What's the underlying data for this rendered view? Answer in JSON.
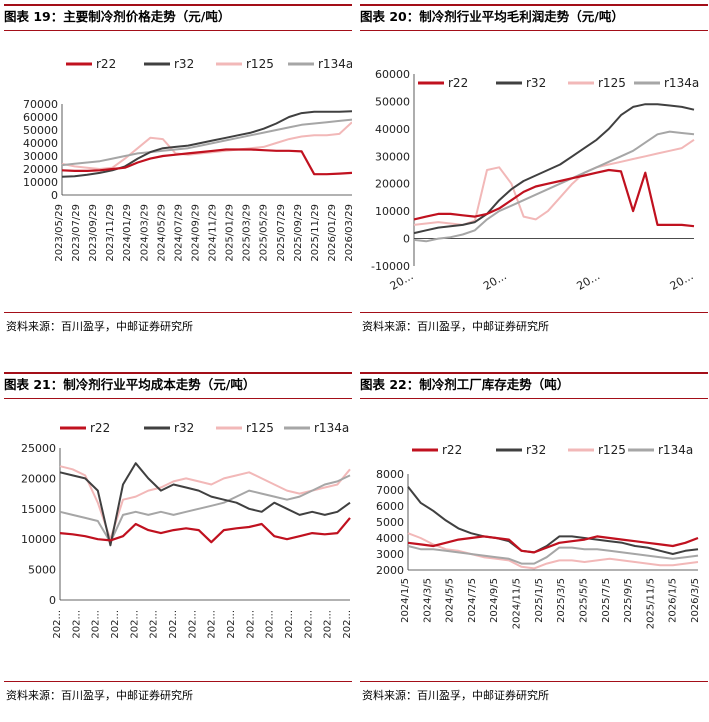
{
  "source_label": "资料来源：百川盈孚，中邮证券研究所",
  "colors": {
    "r22": "#c0111f",
    "r32": "#404040",
    "r125": "#f2b8b8",
    "r134a": "#a6a6a6"
  },
  "chart_data": [
    {
      "id": "chart19",
      "type": "line",
      "title": "图表 19：主要制冷剂价格走势（元/吨）",
      "ylim": [
        0,
        70000
      ],
      "yticks": [
        0,
        10000,
        20000,
        30000,
        40000,
        50000,
        60000,
        70000
      ],
      "ytick_labels": [
        "0",
        "10000",
        "20000",
        "30000",
        "40000",
        "50000",
        "60000",
        "70000"
      ],
      "xtick_labels": [
        "2023/05/29",
        "2023/07/29",
        "2023/09/29",
        "2023/11/29",
        "2024/01/29",
        "2024/03/29",
        "2024/05/29",
        "2024/07/29",
        "2024/09/29",
        "2024/11/29",
        "2025/01/29",
        "2025/03/29",
        "2025/05/29",
        "2025/07/29",
        "2025/09/29",
        "2025/11/29",
        "2026/01/29",
        "2026/03/29"
      ],
      "legend": [
        "r22",
        "r32",
        "r125",
        "r134a"
      ],
      "legend_position": "top",
      "series": [
        {
          "name": "r22",
          "values": [
            19000,
            18500,
            18500,
            19000,
            20000,
            21000,
            25000,
            28000,
            30000,
            31000,
            32000,
            33000,
            34000,
            35000,
            35000,
            35000,
            34500,
            34000,
            34000,
            33500,
            16000,
            16000,
            16500,
            17000
          ]
        },
        {
          "name": "r32",
          "values": [
            14000,
            14500,
            15500,
            17000,
            19000,
            22000,
            28000,
            33000,
            36000,
            37000,
            38000,
            40000,
            42000,
            44000,
            46000,
            48000,
            51000,
            55000,
            60000,
            63000,
            64000,
            64000,
            64000,
            64500
          ]
        },
        {
          "name": "r125",
          "values": [
            24000,
            22000,
            21000,
            20000,
            21000,
            28000,
            36000,
            44000,
            43000,
            32000,
            31000,
            32000,
            33000,
            34000,
            35000,
            36000,
            37000,
            40000,
            43000,
            45000,
            46000,
            46000,
            47000,
            56000
          ]
        },
        {
          "name": "r134a",
          "values": [
            23000,
            24000,
            25000,
            26000,
            28000,
            30000,
            32000,
            33000,
            34000,
            35000,
            36000,
            38000,
            40000,
            42000,
            44000,
            46000,
            48000,
            50000,
            52000,
            54000,
            55000,
            56000,
            57000,
            58000
          ]
        }
      ]
    },
    {
      "id": "chart20",
      "type": "line",
      "title": "图表 20：制冷剂行业平均毛利润走势（元/吨）",
      "ylim": [
        -10000,
        60000
      ],
      "yticks": [
        -10000,
        0,
        10000,
        20000,
        30000,
        40000,
        50000,
        60000
      ],
      "ytick_labels": [
        "-10000",
        "0",
        "10000",
        "20000",
        "30000",
        "40000",
        "50000",
        "60000"
      ],
      "xtick_labels": [
        "20...",
        "20...",
        "20...",
        "20..."
      ],
      "legend": [
        "r22",
        "r32",
        "r125",
        "r134a"
      ],
      "legend_position": "top",
      "series": [
        {
          "name": "r22",
          "values": [
            7000,
            8000,
            9000,
            9000,
            8500,
            8000,
            9000,
            11000,
            14000,
            17000,
            19000,
            20000,
            21000,
            22000,
            23000,
            24000,
            25000,
            24500,
            10000,
            24000,
            5000,
            5000,
            5000,
            4500
          ]
        },
        {
          "name": "r32",
          "values": [
            2000,
            3000,
            4000,
            4500,
            5000,
            6000,
            9000,
            14000,
            18000,
            21000,
            23000,
            25000,
            27000,
            30000,
            33000,
            36000,
            40000,
            45000,
            48000,
            49000,
            49000,
            48500,
            48000,
            47000
          ]
        },
        {
          "name": "r125",
          "values": [
            5000,
            5500,
            6000,
            5500,
            5000,
            6500,
            25000,
            26000,
            20000,
            8000,
            7000,
            10000,
            15000,
            20000,
            24000,
            26000,
            27000,
            28000,
            29000,
            30000,
            31000,
            32000,
            33000,
            36000
          ]
        },
        {
          "name": "r134a",
          "values": [
            -500,
            -1000,
            0,
            500,
            1500,
            3000,
            7000,
            10000,
            12000,
            14000,
            16000,
            18000,
            20000,
            22000,
            24000,
            26000,
            28000,
            30000,
            32000,
            35000,
            38000,
            39000,
            38500,
            38000
          ]
        }
      ]
    },
    {
      "id": "chart21",
      "type": "line",
      "title": "图表 21：制冷剂行业平均成本走势（元/吨）",
      "ylim": [
        0,
        25000
      ],
      "yticks": [
        0,
        5000,
        10000,
        15000,
        20000,
        25000
      ],
      "ytick_labels": [
        "0",
        "5000",
        "10000",
        "15000",
        "20000",
        "25000"
      ],
      "xtick_labels": [
        "202...",
        "202...",
        "202...",
        "202...",
        "202...",
        "202...",
        "202...",
        "202...",
        "202...",
        "202...",
        "202...",
        "202...",
        "202...",
        "202...",
        "202...",
        "202..."
      ],
      "legend": [
        "r22",
        "r32",
        "r125",
        "r134a"
      ],
      "legend_position": "top",
      "series": [
        {
          "name": "r22",
          "values": [
            11000,
            10800,
            10500,
            10000,
            9800,
            10500,
            12500,
            11500,
            11000,
            11500,
            11800,
            11500,
            9500,
            11500,
            11800,
            12000,
            12500,
            10500,
            10000,
            10500,
            11000,
            10800,
            11000,
            13500
          ]
        },
        {
          "name": "r32",
          "values": [
            21000,
            20500,
            20000,
            18000,
            9000,
            19000,
            22500,
            20000,
            18000,
            19000,
            18500,
            18000,
            17000,
            16500,
            16000,
            15000,
            14500,
            16000,
            15000,
            14000,
            14500,
            14000,
            14500,
            16000
          ]
        },
        {
          "name": "r125",
          "values": [
            22000,
            21500,
            20500,
            16000,
            10000,
            16500,
            17000,
            18000,
            18500,
            19500,
            20000,
            19500,
            19000,
            20000,
            20500,
            21000,
            20000,
            19000,
            18000,
            17500,
            18000,
            18500,
            19000,
            21500
          ]
        },
        {
          "name": "r134a",
          "values": [
            14500,
            14000,
            13500,
            13000,
            9500,
            14000,
            14500,
            14000,
            14500,
            14000,
            14500,
            15000,
            15500,
            16000,
            17000,
            18000,
            17500,
            17000,
            16500,
            17000,
            18000,
            19000,
            19500,
            20500
          ]
        }
      ]
    },
    {
      "id": "chart22",
      "type": "line",
      "title": "图表 22：制冷剂工厂库存走势（吨）",
      "ylim": [
        2000,
        8000
      ],
      "yticks": [
        2000,
        3000,
        4000,
        5000,
        6000,
        7000,
        8000
      ],
      "ytick_labels": [
        "2000",
        "3000",
        "4000",
        "5000",
        "6000",
        "7000",
        "8000"
      ],
      "xtick_labels": [
        "2024/1/5",
        "2024/3/5",
        "2024/5/5",
        "2024/7/5",
        "2024/9/5",
        "2024/11/5",
        "2025/1/5",
        "2025/3/5",
        "2025/5/5",
        "2025/7/5",
        "2025/9/5",
        "2025/11/5",
        "2026/1/5",
        "2026/3/5"
      ],
      "legend": [
        "r22",
        "r32",
        "r125",
        "r134a"
      ],
      "legend_position": "top",
      "series": [
        {
          "name": "r22",
          "values": [
            3700,
            3600,
            3500,
            3700,
            3900,
            4000,
            4100,
            4000,
            3900,
            3200,
            3100,
            3400,
            3700,
            3800,
            3900,
            4100,
            4000,
            3900,
            3800,
            3700,
            3600,
            3500,
            3700,
            4000
          ]
        },
        {
          "name": "r32",
          "values": [
            7200,
            6200,
            5700,
            5100,
            4600,
            4300,
            4100,
            4000,
            3800,
            3200,
            3100,
            3500,
            4100,
            4100,
            4000,
            3900,
            3800,
            3700,
            3500,
            3400,
            3200,
            3000,
            3200,
            3300
          ]
        },
        {
          "name": "r125",
          "values": [
            4300,
            4000,
            3600,
            3300,
            3200,
            3000,
            2800,
            2700,
            2600,
            2200,
            2100,
            2400,
            2600,
            2600,
            2500,
            2600,
            2700,
            2600,
            2500,
            2400,
            2300,
            2300,
            2400,
            2500
          ]
        },
        {
          "name": "r134a",
          "values": [
            3500,
            3300,
            3300,
            3200,
            3100,
            3000,
            2900,
            2800,
            2700,
            2400,
            2400,
            2800,
            3400,
            3400,
            3300,
            3300,
            3200,
            3100,
            3000,
            2900,
            2800,
            2700,
            2800,
            2900
          ]
        }
      ]
    }
  ]
}
